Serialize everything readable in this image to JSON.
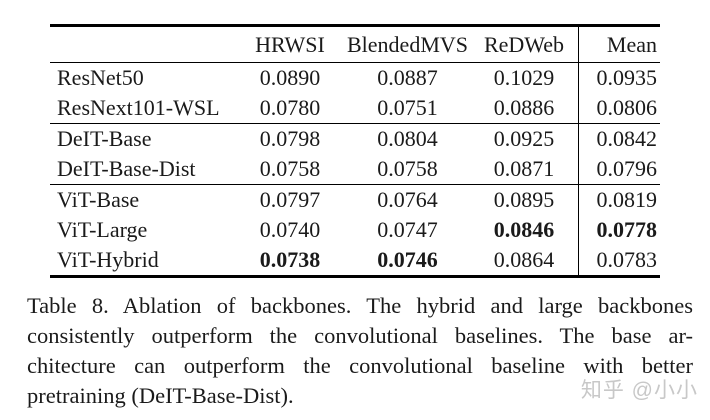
{
  "table": {
    "columns": [
      "",
      "HRWSI",
      "BlendedMVS",
      "ReDWeb",
      "Mean"
    ],
    "groups": [
      {
        "rows": [
          {
            "label": "ResNet50",
            "values": [
              "0.0890",
              "0.0887",
              "0.1029",
              "0.0935"
            ],
            "bold": [
              false,
              false,
              false,
              false
            ]
          },
          {
            "label": "ResNext101-WSL",
            "values": [
              "0.0780",
              "0.0751",
              "0.0886",
              "0.0806"
            ],
            "bold": [
              false,
              false,
              false,
              false
            ]
          }
        ]
      },
      {
        "rows": [
          {
            "label": "DeIT-Base",
            "values": [
              "0.0798",
              "0.0804",
              "0.0925",
              "0.0842"
            ],
            "bold": [
              false,
              false,
              false,
              false
            ]
          },
          {
            "label": "DeIT-Base-Dist",
            "values": [
              "0.0758",
              "0.0758",
              "0.0871",
              "0.0796"
            ],
            "bold": [
              false,
              false,
              false,
              false
            ]
          }
        ]
      },
      {
        "rows": [
          {
            "label": "ViT-Base",
            "values": [
              "0.0797",
              "0.0764",
              "0.0895",
              "0.0819"
            ],
            "bold": [
              false,
              false,
              false,
              false
            ]
          },
          {
            "label": "ViT-Large",
            "values": [
              "0.0740",
              "0.0747",
              "0.0846",
              "0.0778"
            ],
            "bold": [
              false,
              false,
              true,
              true
            ]
          },
          {
            "label": "ViT-Hybrid",
            "values": [
              "0.0738",
              "0.0746",
              "0.0864",
              "0.0783"
            ],
            "bold": [
              true,
              true,
              false,
              false
            ]
          }
        ]
      }
    ]
  },
  "caption": {
    "lines": [
      "Table 8. Ablation of backbones. The hybrid and large backbones",
      "consistently outperform the convolutional baselines. The base ar-",
      "chitecture can outperform the convolutional baseline with better",
      "pretraining (DeIT-Base-Dist)."
    ]
  },
  "watermark": {
    "text": "知乎 @小小"
  },
  "colors": {
    "background": "#ffffff",
    "text": "#1a1a1a",
    "rule": "#000000",
    "watermark": "#c8c8c8"
  }
}
